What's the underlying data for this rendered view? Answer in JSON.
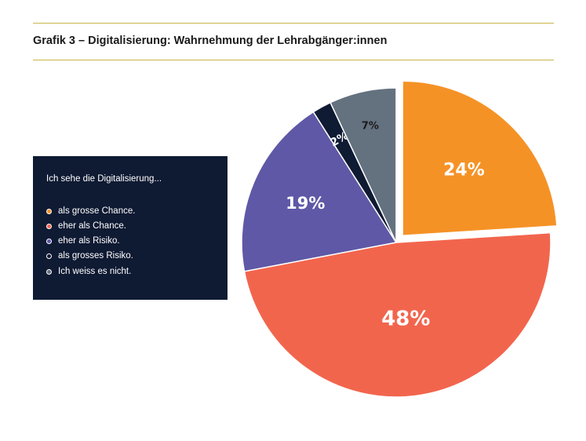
{
  "title": "Grafik 3 – Digitalisierung: Wahrnehmung der Lehrabgänger:innen",
  "legend": {
    "heading": "Ich sehe die Digitalisierung..."
  },
  "chart_data": {
    "type": "pie",
    "start_angle_deg": 0,
    "direction": "clockwise",
    "exploded_slice_index": 0,
    "slices": [
      {
        "label": "als grosse Chance.",
        "value": 24,
        "display": "24%",
        "color": "#f59226",
        "label_color": "#ffffff"
      },
      {
        "label": "eher als Chance.",
        "value": 48,
        "display": "48%",
        "color": "#f2654d",
        "label_color": "#ffffff"
      },
      {
        "label": "eher als Risiko.",
        "value": 19,
        "display": "19%",
        "color": "#5f58a6",
        "label_color": "#ffffff"
      },
      {
        "label": "als grosses Risiko.",
        "value": 2,
        "display": "2%",
        "color": "#0f1a33",
        "label_color": "#ffffff"
      },
      {
        "label": "Ich weiss es nicht.",
        "value": 7,
        "display": "7%",
        "color": "#64717f",
        "label_color": "#1a1a1a"
      }
    ]
  }
}
